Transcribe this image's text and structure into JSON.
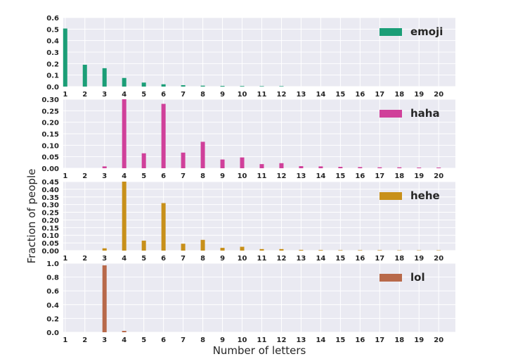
{
  "chart_data": {
    "type": "bar",
    "xlabel": "Number of letters",
    "ylabel": "Fraction of people",
    "categories": [
      1,
      2,
      3,
      4,
      5,
      6,
      7,
      8,
      9,
      10,
      11,
      12,
      13,
      14,
      15,
      16,
      17,
      18,
      19,
      20
    ],
    "grid": true,
    "legend_position": "top-right",
    "panels": [
      {
        "name": "emoji",
        "color": "#1b9e77",
        "ylim": [
          0,
          0.6
        ],
        "yticks": [
          "0.0",
          "0.1",
          "0.2",
          "0.3",
          "0.4",
          "0.5",
          "0.6"
        ],
        "values": [
          0.505,
          0.19,
          0.16,
          0.075,
          0.035,
          0.02,
          0.012,
          0.008,
          0.006,
          0.005,
          0.004,
          0.004,
          0,
          0,
          0,
          0,
          0,
          0,
          0,
          0
        ]
      },
      {
        "name": "haha",
        "color": "#d0409a",
        "ylim": [
          0,
          0.3
        ],
        "yticks": [
          "0.00",
          "0.05",
          "0.10",
          "0.15",
          "0.20",
          "0.25",
          "0.30"
        ],
        "values": [
          0,
          0,
          0.008,
          0.3,
          0.065,
          0.28,
          0.068,
          0.115,
          0.038,
          0.047,
          0.018,
          0.022,
          0.009,
          0.008,
          0.006,
          0.005,
          0.004,
          0.004,
          0.003,
          0.003
        ]
      },
      {
        "name": "hehe",
        "color": "#c8901a",
        "ylim": [
          0,
          0.45
        ],
        "yticks": [
          "0.00",
          "0.05",
          "0.10",
          "0.15",
          "0.20",
          "0.25",
          "0.30",
          "0.35",
          "0.40",
          "0.45"
        ],
        "values": [
          0,
          0,
          0.015,
          0.45,
          0.065,
          0.31,
          0.045,
          0.07,
          0.018,
          0.025,
          0.01,
          0.01,
          0.005,
          0.004,
          0.003,
          0.003,
          0.003,
          0.002,
          0.002,
          0.002
        ]
      },
      {
        "name": "lol",
        "color": "#b8694a",
        "ylim": [
          0,
          1.0
        ],
        "yticks": [
          "0.0",
          "0.2",
          "0.4",
          "0.6",
          "0.8",
          "1.0"
        ],
        "values": [
          0,
          0,
          0.97,
          0.02,
          0,
          0,
          0,
          0,
          0,
          0,
          0,
          0,
          0,
          0,
          0,
          0,
          0,
          0,
          0,
          0
        ]
      }
    ]
  }
}
